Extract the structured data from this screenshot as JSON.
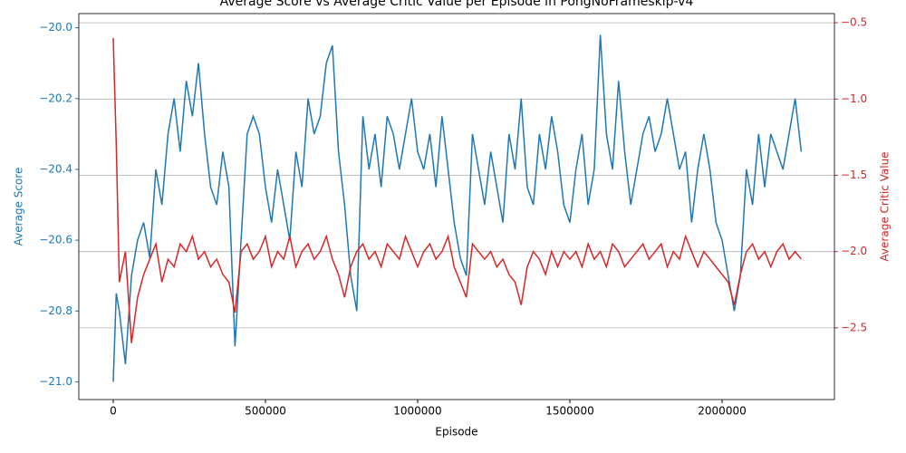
{
  "chart_data": {
    "type": "line",
    "title": "Average Score vs Average Critic Value per Episode in PongNoFrameskip-v4",
    "xlabel": "Episode",
    "ylabel": "Average Score",
    "y2label": "Average Critic Value",
    "x": [
      0,
      10000,
      20000,
      40000,
      60000,
      80000,
      100000,
      120000,
      140000,
      160000,
      180000,
      200000,
      220000,
      240000,
      260000,
      280000,
      300000,
      320000,
      340000,
      360000,
      380000,
      400000,
      420000,
      440000,
      460000,
      480000,
      500000,
      520000,
      540000,
      560000,
      580000,
      600000,
      620000,
      640000,
      660000,
      680000,
      700000,
      720000,
      740000,
      760000,
      780000,
      800000,
      820000,
      840000,
      860000,
      880000,
      900000,
      920000,
      940000,
      960000,
      980000,
      1000000,
      1020000,
      1040000,
      1060000,
      1080000,
      1100000,
      1120000,
      1140000,
      1160000,
      1180000,
      1200000,
      1220000,
      1240000,
      1260000,
      1280000,
      1300000,
      1320000,
      1340000,
      1360000,
      1380000,
      1400000,
      1420000,
      1440000,
      1460000,
      1480000,
      1500000,
      1520000,
      1540000,
      1560000,
      1580000,
      1600000,
      1620000,
      1640000,
      1660000,
      1680000,
      1700000,
      1720000,
      1740000,
      1760000,
      1780000,
      1800000,
      1820000,
      1840000,
      1860000,
      1880000,
      1900000,
      1920000,
      1940000,
      1960000,
      1980000,
      2000000,
      2020000,
      2040000,
      2060000,
      2080000,
      2100000,
      2120000,
      2140000,
      2160000,
      2180000,
      2200000,
      2220000,
      2240000,
      2260000
    ],
    "series": [
      {
        "name": "Average Score",
        "color": "#1f77b4",
        "axis": "y",
        "values": [
          -21.0,
          -20.75,
          -20.8,
          -20.95,
          -20.7,
          -20.6,
          -20.55,
          -20.65,
          -20.4,
          -20.5,
          -20.3,
          -20.2,
          -20.35,
          -20.15,
          -20.25,
          -20.1,
          -20.3,
          -20.45,
          -20.5,
          -20.35,
          -20.45,
          -20.9,
          -20.6,
          -20.3,
          -20.25,
          -20.3,
          -20.45,
          -20.55,
          -20.4,
          -20.5,
          -20.6,
          -20.35,
          -20.45,
          -20.2,
          -20.3,
          -20.25,
          -20.1,
          -20.05,
          -20.35,
          -20.5,
          -20.7,
          -20.8,
          -20.25,
          -20.4,
          -20.3,
          -20.45,
          -20.25,
          -20.3,
          -20.4,
          -20.3,
          -20.2,
          -20.35,
          -20.4,
          -20.3,
          -20.45,
          -20.25,
          -20.4,
          -20.55,
          -20.65,
          -20.7,
          -20.3,
          -20.4,
          -20.5,
          -20.35,
          -20.45,
          -20.55,
          -20.3,
          -20.4,
          -20.2,
          -20.45,
          -20.5,
          -20.3,
          -20.4,
          -20.25,
          -20.35,
          -20.5,
          -20.55,
          -20.4,
          -20.3,
          -20.5,
          -20.4,
          -20.02,
          -20.3,
          -20.4,
          -20.15,
          -20.35,
          -20.5,
          -20.4,
          -20.3,
          -20.25,
          -20.35,
          -20.3,
          -20.2,
          -20.3,
          -20.4,
          -20.35,
          -20.55,
          -20.4,
          -20.3,
          -20.4,
          -20.55,
          -20.6,
          -20.7,
          -20.8,
          -20.7,
          -20.4,
          -20.5,
          -20.3,
          -20.45,
          -20.3,
          -20.35,
          -20.4,
          -20.3,
          -20.2,
          -20.35
        ]
      },
      {
        "name": "Average Critic Value",
        "color": "#d62728",
        "axis": "y2",
        "values": [
          -0.6,
          -1.3,
          -2.2,
          -2.0,
          -2.6,
          -2.3,
          -2.15,
          -2.05,
          -1.95,
          -2.2,
          -2.05,
          -2.1,
          -1.95,
          -2.0,
          -1.9,
          -2.05,
          -2.0,
          -2.1,
          -2.05,
          -2.15,
          -2.2,
          -2.4,
          -2.0,
          -1.95,
          -2.05,
          -2.0,
          -1.9,
          -2.1,
          -2.0,
          -2.05,
          -1.9,
          -2.1,
          -2.0,
          -1.95,
          -2.05,
          -2.0,
          -1.9,
          -2.05,
          -2.15,
          -2.3,
          -2.1,
          -2.0,
          -1.95,
          -2.05,
          -2.0,
          -2.1,
          -1.95,
          -2.0,
          -2.05,
          -1.9,
          -2.0,
          -2.1,
          -2.0,
          -1.95,
          -2.05,
          -2.0,
          -1.9,
          -2.1,
          -2.2,
          -2.3,
          -1.95,
          -2.0,
          -2.05,
          -2.0,
          -2.1,
          -2.05,
          -2.15,
          -2.2,
          -2.35,
          -2.1,
          -2.0,
          -2.05,
          -2.15,
          -2.0,
          -2.1,
          -2.0,
          -2.05,
          -2.0,
          -2.1,
          -1.95,
          -2.05,
          -2.0,
          -2.1,
          -1.95,
          -2.0,
          -2.1,
          -2.05,
          -2.0,
          -1.95,
          -2.05,
          -2.0,
          -1.95,
          -2.1,
          -2.0,
          -2.05,
          -1.9,
          -2.0,
          -2.1,
          -2.0,
          -2.05,
          -2.1,
          -2.15,
          -2.2,
          -2.35,
          -2.15,
          -2.0,
          -1.95,
          -2.05,
          -2.0,
          -2.1,
          -2.0,
          -1.95,
          -2.05,
          -2.0,
          -2.05
        ]
      }
    ],
    "xlim": [
      -113000,
      2369000
    ],
    "xticks": [
      0,
      500000,
      1000000,
      1500000,
      2000000
    ],
    "ylim": [
      -21.05,
      -19.96
    ],
    "yticks": [
      {
        "value": -21.0,
        "label": "−21.0"
      },
      {
        "value": -20.8,
        "label": "−20.8"
      },
      {
        "value": -20.6,
        "label": "−20.6"
      },
      {
        "value": -20.4,
        "label": "−20.4"
      },
      {
        "value": -20.2,
        "label": "−20.2"
      },
      {
        "value": -20.0,
        "label": "−20.0"
      }
    ],
    "y2lim": [
      -2.97,
      -0.44
    ],
    "y2ticks": [
      {
        "value": -2.5,
        "label": "−2.5"
      },
      {
        "value": -2.0,
        "label": "−2.0"
      },
      {
        "value": -1.5,
        "label": "−1.5"
      },
      {
        "value": -1.0,
        "label": "−1.0"
      },
      {
        "value": -0.5,
        "label": "−0.5"
      }
    ],
    "grid": "y2"
  }
}
